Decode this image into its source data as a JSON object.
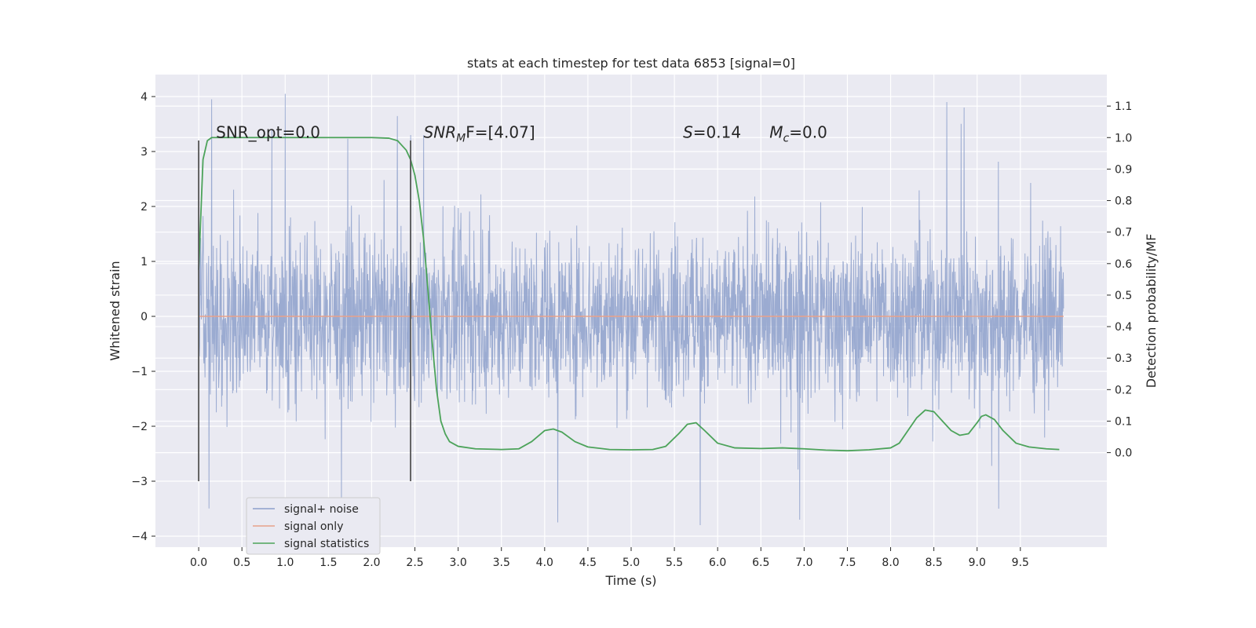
{
  "chart_data": {
    "type": "line",
    "title": "stats at each timestep for test data 6853 [signal=0]",
    "xlabel": "Time (s)",
    "ylabel": "Whitened strain",
    "ylabel_right": "Detection probability/MF",
    "xlim": [
      -0.5,
      10.5
    ],
    "ylim": [
      -4.2,
      4.4
    ],
    "ylim_right": [
      -0.3,
      1.2
    ],
    "x_ticks": [
      0.0,
      0.5,
      1.0,
      1.5,
      2.0,
      2.5,
      3.0,
      3.5,
      4.0,
      4.5,
      5.0,
      5.5,
      6.0,
      6.5,
      7.0,
      7.5,
      8.0,
      8.5,
      9.0,
      9.5
    ],
    "x_tick_labels": [
      "0.0",
      "0.5",
      "1.0",
      "1.5",
      "2.0",
      "2.5",
      "3.0",
      "3.5",
      "4.0",
      "4.5",
      "5.0",
      "5.5",
      "6.0",
      "6.5",
      "7.0",
      "7.5",
      "8.0",
      "8.5",
      "9.0",
      "9.5"
    ],
    "y_ticks": [
      -4,
      -3,
      -2,
      -1,
      0,
      1,
      2,
      3,
      4
    ],
    "y_tick_labels": [
      "−4",
      "−3",
      "−2",
      "−1",
      "0",
      "1",
      "2",
      "3",
      "4"
    ],
    "y_ticks_right": [
      0.0,
      0.1,
      0.2,
      0.3,
      0.4,
      0.5,
      0.6,
      0.7,
      0.8,
      0.9,
      1.0,
      1.1
    ],
    "y_tick_labels_right": [
      "0.0",
      "0.1",
      "0.2",
      "0.3",
      "0.4",
      "0.5",
      "0.6",
      "0.7",
      "0.8",
      "0.9",
      "1.0",
      "1.1"
    ],
    "grid": true,
    "legend_position": "lower-left",
    "series": [
      {
        "name": "signal+ noise",
        "axis": "left",
        "color": "#8da0cb",
        "x_range": [
          0.0,
          10.0
        ],
        "envelope": {
          "typical_abs": 1.35,
          "peak_max": 4.05,
          "peak_min": -3.8,
          "spikes": [
            {
              "x": 0.15,
              "y": 3.95
            },
            {
              "x": 1.0,
              "y": 4.05
            },
            {
              "x": 8.65,
              "y": 3.9
            },
            {
              "x": 8.85,
              "y": 3.8
            },
            {
              "x": 2.45,
              "y": 3.3
            },
            {
              "x": 2.6,
              "y": 3.3
            },
            {
              "x": 4.15,
              "y": -3.75
            },
            {
              "x": 6.95,
              "y": -3.7
            },
            {
              "x": 5.8,
              "y": -3.8
            },
            {
              "x": 1.65,
              "y": -3.5
            },
            {
              "x": 9.25,
              "y": -3.5
            }
          ]
        }
      },
      {
        "name": "signal only",
        "axis": "left",
        "color": "#e8a28a",
        "x": [
          0.0,
          10.0
        ],
        "y": [
          0.0,
          0.0
        ]
      },
      {
        "name": "signal statistics",
        "axis": "right",
        "color": "#4ca35a",
        "x": [
          0.0,
          0.05,
          0.1,
          0.15,
          0.2,
          0.5,
          1.0,
          1.5,
          2.0,
          2.2,
          2.3,
          2.4,
          2.45,
          2.5,
          2.55,
          2.6,
          2.65,
          2.7,
          2.75,
          2.8,
          2.85,
          2.9,
          3.0,
          3.2,
          3.5,
          3.7,
          3.85,
          4.0,
          4.1,
          4.2,
          4.35,
          4.5,
          4.75,
          5.0,
          5.25,
          5.4,
          5.55,
          5.65,
          5.75,
          5.85,
          6.0,
          6.2,
          6.5,
          6.75,
          7.0,
          7.25,
          7.5,
          7.75,
          8.0,
          8.1,
          8.2,
          8.3,
          8.4,
          8.5,
          8.6,
          8.7,
          8.8,
          8.9,
          9.0,
          9.05,
          9.1,
          9.2,
          9.3,
          9.45,
          9.6,
          9.8,
          9.95
        ],
        "y": [
          0.58,
          0.93,
          0.99,
          1.0,
          1.0,
          1.0,
          1.0,
          1.0,
          1.0,
          0.998,
          0.99,
          0.96,
          0.93,
          0.88,
          0.8,
          0.68,
          0.52,
          0.35,
          0.2,
          0.1,
          0.06,
          0.035,
          0.02,
          0.012,
          0.01,
          0.012,
          0.035,
          0.07,
          0.075,
          0.065,
          0.035,
          0.018,
          0.01,
          0.009,
          0.01,
          0.02,
          0.06,
          0.09,
          0.095,
          0.07,
          0.03,
          0.015,
          0.013,
          0.015,
          0.012,
          0.008,
          0.006,
          0.009,
          0.015,
          0.03,
          0.07,
          0.11,
          0.135,
          0.13,
          0.1,
          0.07,
          0.055,
          0.06,
          0.095,
          0.115,
          0.12,
          0.105,
          0.07,
          0.03,
          0.018,
          0.012,
          0.01
        ]
      }
    ],
    "vertical_markers": [
      {
        "x": 0.0,
        "y_range": [
          -3.0,
          3.2
        ],
        "color": "#555555"
      },
      {
        "x": 2.45,
        "y_range": [
          -3.0,
          3.2
        ],
        "color": "#555555"
      }
    ],
    "annotations": [
      {
        "text": "SNR_opt=0.0",
        "x": 0.2,
        "y": 3.25
      },
      {
        "base": "SNR",
        "sub": "M",
        "rest": "F=[4.07]",
        "x": 2.6,
        "y": 3.25
      },
      {
        "base": "S",
        "sub": "",
        "rest": "=0.14",
        "x": 5.6,
        "y": 3.25
      },
      {
        "base": "M",
        "sub": "c",
        "rest": "=0.0",
        "x": 6.6,
        "y": 3.25
      }
    ]
  }
}
